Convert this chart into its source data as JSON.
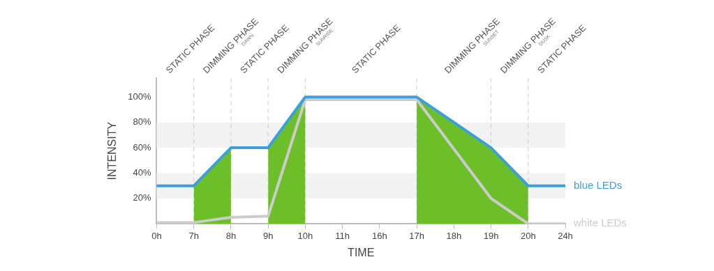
{
  "chart_data": {
    "type": "line",
    "xlabel": "TIME",
    "ylabel": "INTENSITY",
    "categories": [
      "0h",
      "7h",
      "8h",
      "9h",
      "10h",
      "11h",
      "16h",
      "17h",
      "18h",
      "19h",
      "20h",
      "24h"
    ],
    "series": [
      {
        "type": "area",
        "color": "#6dbf2a",
        "values": [
          null,
          30,
          60,
          null,
          null,
          null,
          null,
          null,
          null,
          null,
          null,
          null
        ]
      },
      {
        "type": "area",
        "color": "#6dbf2a",
        "values": [
          null,
          null,
          null,
          60,
          100,
          null,
          null,
          null,
          null,
          null,
          null,
          null
        ]
      },
      {
        "type": "area",
        "color": "#6dbf2a",
        "values": [
          null,
          null,
          null,
          null,
          null,
          null,
          null,
          100,
          80,
          60,
          30,
          null
        ]
      },
      {
        "name": "white LEDs",
        "color": "#cccccc",
        "values": [
          1,
          1,
          5,
          6,
          98,
          98,
          98,
          98,
          59,
          20,
          0,
          0
        ]
      },
      {
        "name": "blue LEDs",
        "color": "#3aa0dc",
        "values": [
          30,
          30,
          60,
          60,
          100,
          100,
          100,
          100,
          80,
          60,
          30,
          30
        ]
      }
    ],
    "ylim": [
      0,
      115
    ],
    "yticks": [
      {
        "value": 20,
        "label": "20%"
      },
      {
        "value": 40,
        "label": "40%"
      },
      {
        "value": 60,
        "label": "60%"
      },
      {
        "value": 80,
        "label": "80%"
      },
      {
        "value": 100,
        "label": "100%"
      }
    ],
    "bands": [
      {
        "axis": "y",
        "from": 20,
        "to": 40,
        "color": "#f2f2f2"
      },
      {
        "axis": "y",
        "from": 60,
        "to": 80,
        "color": "#f2f2f2"
      }
    ],
    "ref_lines": [
      {
        "axis": "x",
        "value": "7h",
        "color": "#cccccc",
        "line_style": "dashed"
      },
      {
        "axis": "x",
        "value": "8h",
        "color": "#cccccc",
        "line_style": "dashed"
      },
      {
        "axis": "x",
        "value": "9h",
        "color": "#cccccc",
        "line_style": "dashed"
      },
      {
        "axis": "x",
        "value": "10h",
        "color": "#cccccc",
        "line_style": "dashed"
      },
      {
        "axis": "x",
        "value": "17h",
        "color": "#cccccc",
        "line_style": "dashed"
      },
      {
        "axis": "x",
        "value": "19h",
        "color": "#cccccc",
        "line_style": "dashed"
      },
      {
        "axis": "x",
        "value": "20h",
        "color": "#cccccc",
        "line_style": "dashed"
      }
    ],
    "annotations": [
      "STATIC PHASE",
      "DIMMING PHASE$_{DAWN}$",
      "STATIC PHASE",
      "DIMMING PHASE$_{SUNRISE}$",
      "STATIC PHASE",
      "DIMMING PHASE$_{SUNSET}$",
      "DIMMING PHASE$_{DUSK}$",
      "STATIC PHASE"
    ],
    "legend": false,
    "grid": false,
    "marker": "none",
    "line_style": "solid"
  }
}
